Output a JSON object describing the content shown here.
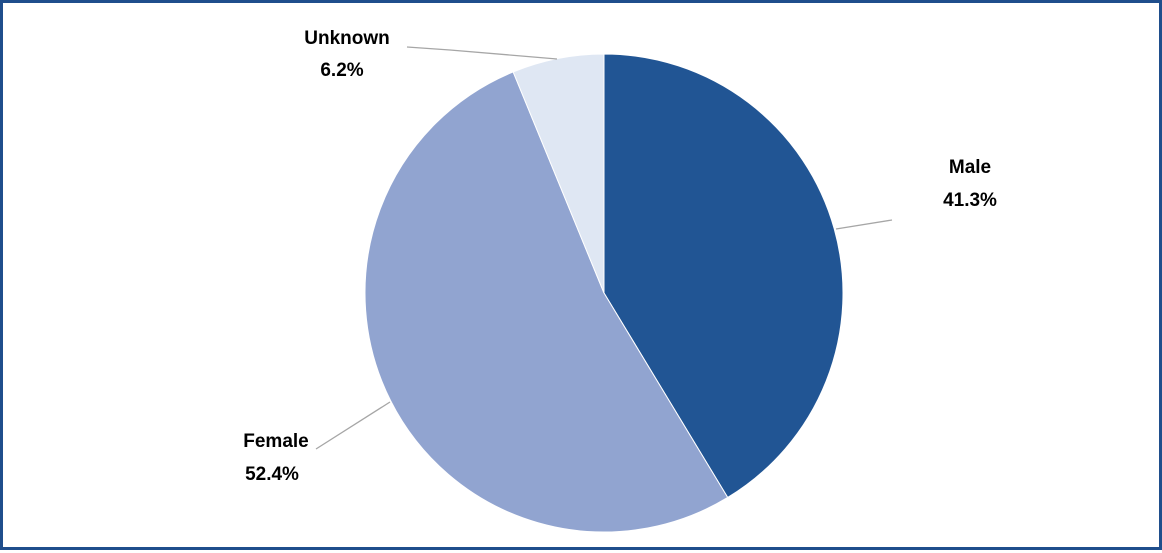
{
  "chart_data": {
    "type": "pie",
    "title": "",
    "start_angle": "12 o'clock",
    "direction": "clockwise",
    "slices": [
      {
        "label": "Male",
        "value": 41.3,
        "value_label": "41.3%",
        "color": "#215594"
      },
      {
        "label": "Female",
        "value": 52.4,
        "value_label": "52.4%",
        "color": "#91a4d0"
      },
      {
        "label": "Unknown",
        "value": 6.2,
        "value_label": "6.2%",
        "color": "#dfe7f3"
      }
    ]
  },
  "colors": {
    "frame_border": "#1f4e8c",
    "leader_line": "#a6a6a6",
    "background": "#ffffff"
  }
}
